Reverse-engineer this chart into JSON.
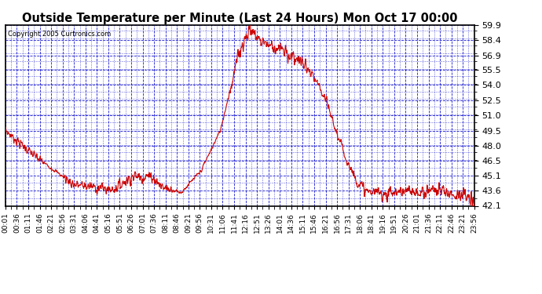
{
  "title": "Outside Temperature per Minute (Last 24 Hours) Mon Oct 17 00:00",
  "copyright": "Copyright 2005 Curtronics.com",
  "yticks": [
    42.1,
    43.6,
    45.1,
    46.5,
    48.0,
    49.5,
    51.0,
    52.5,
    54.0,
    55.5,
    56.9,
    58.4,
    59.9
  ],
  "ymin": 42.1,
  "ymax": 59.9,
  "line_color": "#cc0000",
  "grid_color": "#0000cc",
  "background_color": "#ffffff",
  "plot_bg_color": "#ffffff",
  "border_color": "#000000",
  "xtick_labels": [
    "00:01",
    "00:36",
    "01:11",
    "01:46",
    "02:21",
    "02:56",
    "03:31",
    "04:06",
    "04:41",
    "05:16",
    "05:51",
    "06:26",
    "07:01",
    "07:36",
    "08:11",
    "08:46",
    "09:21",
    "09:56",
    "10:31",
    "11:06",
    "11:41",
    "12:16",
    "12:51",
    "13:26",
    "14:01",
    "14:36",
    "15:11",
    "15:46",
    "16:21",
    "16:56",
    "17:31",
    "18:06",
    "18:41",
    "19:16",
    "19:51",
    "20:26",
    "21:01",
    "21:36",
    "22:11",
    "22:46",
    "23:21",
    "23:56"
  ]
}
